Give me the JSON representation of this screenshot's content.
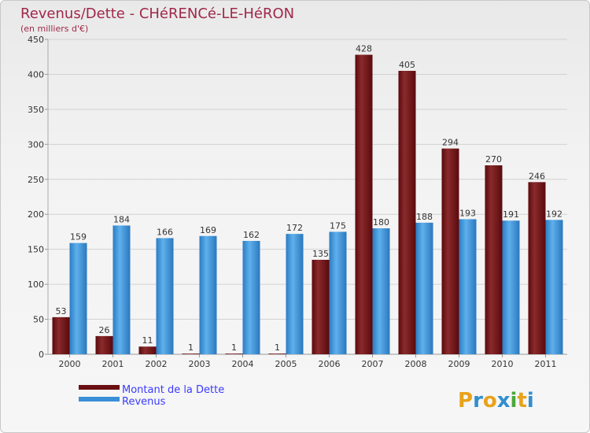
{
  "chart_data": {
    "type": "bar",
    "title": "Revenus/Dette - CHéRENCé-LE-HéRON",
    "subtitle": "(en milliers d'€)",
    "xlabel": "",
    "ylabel": "",
    "ylim": [
      0,
      450
    ],
    "yticks": [
      0,
      50,
      100,
      150,
      200,
      250,
      300,
      350,
      400,
      450
    ],
    "grid": true,
    "categories": [
      "2000",
      "2001",
      "2002",
      "2003",
      "2004",
      "2005",
      "2006",
      "2007",
      "2008",
      "2009",
      "2010",
      "2011"
    ],
    "series": [
      {
        "name": "Montant de la Dette",
        "color": "#6b0f12",
        "values": [
          53,
          26,
          11,
          1,
          1,
          1,
          135,
          428,
          405,
          294,
          270,
          246
        ]
      },
      {
        "name": "Revenus",
        "color": "#3a8fd6",
        "values": [
          159,
          184,
          166,
          169,
          162,
          172,
          175,
          180,
          188,
          193,
          191,
          192
        ]
      }
    ],
    "legend": "bottom-left"
  },
  "logo": {
    "letters": [
      "P",
      "r",
      "o",
      "x",
      "i",
      "t",
      "i"
    ],
    "colors": [
      "#e8a21a",
      "#2f8fd0",
      "#e8a21a",
      "#2f8fd0",
      "#4aa83a",
      "#e8a21a",
      "#2f8fd0"
    ]
  }
}
